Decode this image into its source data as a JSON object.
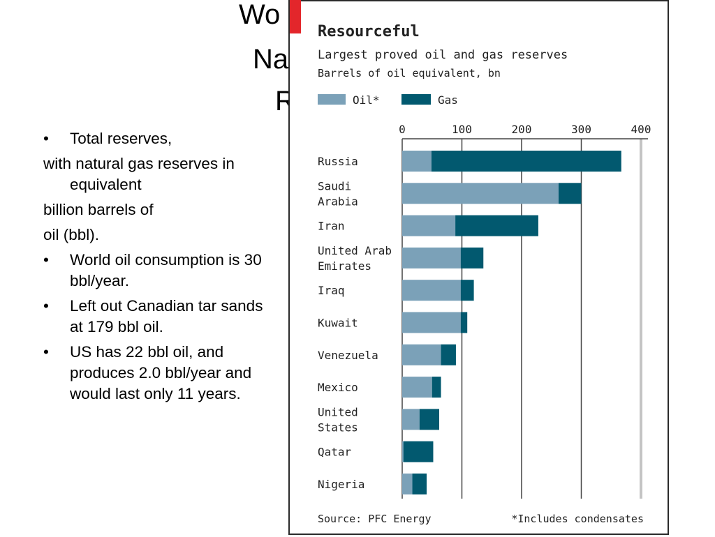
{
  "slide": {
    "title_lines": [
      "Wo",
      "Na",
      "R"
    ],
    "bullets": [
      {
        "text": "Total reserves,",
        "bullet": true
      },
      {
        "text": "with natural gas reserves in equivalent",
        "bullet": false
      },
      {
        "text": "billion barrels of",
        "bullet": false
      },
      {
        "text": "oil (bbl).",
        "bullet": false
      },
      {
        "text": "World oil consumption is 30 bbl/year.",
        "bullet": true
      },
      {
        "text": "Left out Canadian tar sands at 179 bbl oil.",
        "bullet": true
      },
      {
        "text": "US has 22 bbl oil, and produces 2.0 bbl/year and would last only 11 years.",
        "bullet": true
      }
    ],
    "bullet_glyph": "•",
    "accent_color": "#e3262b"
  },
  "chart_data": {
    "type": "bar",
    "orientation": "horizontal",
    "stacked": true,
    "title": "Resourceful",
    "subtitle": "Largest proved oil and gas reserves",
    "unit_label": "Barrels of oil equivalent, bn",
    "categories": [
      "Russia",
      "Saudi Arabia",
      "Iran",
      "United Arab Emirates",
      "Iraq",
      "Kuwait",
      "Venezuela",
      "Mexico",
      "United States",
      "Qatar",
      "Nigeria"
    ],
    "category_lines": [
      [
        "Russia"
      ],
      [
        "Saudi",
        "Arabia"
      ],
      [
        "Iran"
      ],
      [
        "United Arab",
        "Emirates"
      ],
      [
        "Iraq"
      ],
      [
        "Kuwait"
      ],
      [
        "Venezuela"
      ],
      [
        "Mexico"
      ],
      [
        "United",
        "States"
      ],
      [
        "Qatar"
      ],
      [
        "Nigeria"
      ]
    ],
    "series": [
      {
        "name": "Oil*",
        "color": "#7ba1b8",
        "values": [
          49,
          262,
          89,
          98,
          98,
          98,
          65,
          50,
          29,
          2,
          17
        ]
      },
      {
        "name": "Gas",
        "color": "#02596f",
        "values": [
          318,
          38,
          139,
          38,
          22,
          11,
          25,
          15,
          33,
          50,
          24
        ]
      }
    ],
    "xlim": [
      0,
      400
    ],
    "xticks": [
      "0",
      "100",
      "200",
      "300",
      "400"
    ],
    "xtick_values": [
      0,
      100,
      200,
      300,
      400
    ],
    "grid": true,
    "legend": "top-left",
    "source": "Source: PFC Energy",
    "footnote": "*Includes condensates"
  }
}
